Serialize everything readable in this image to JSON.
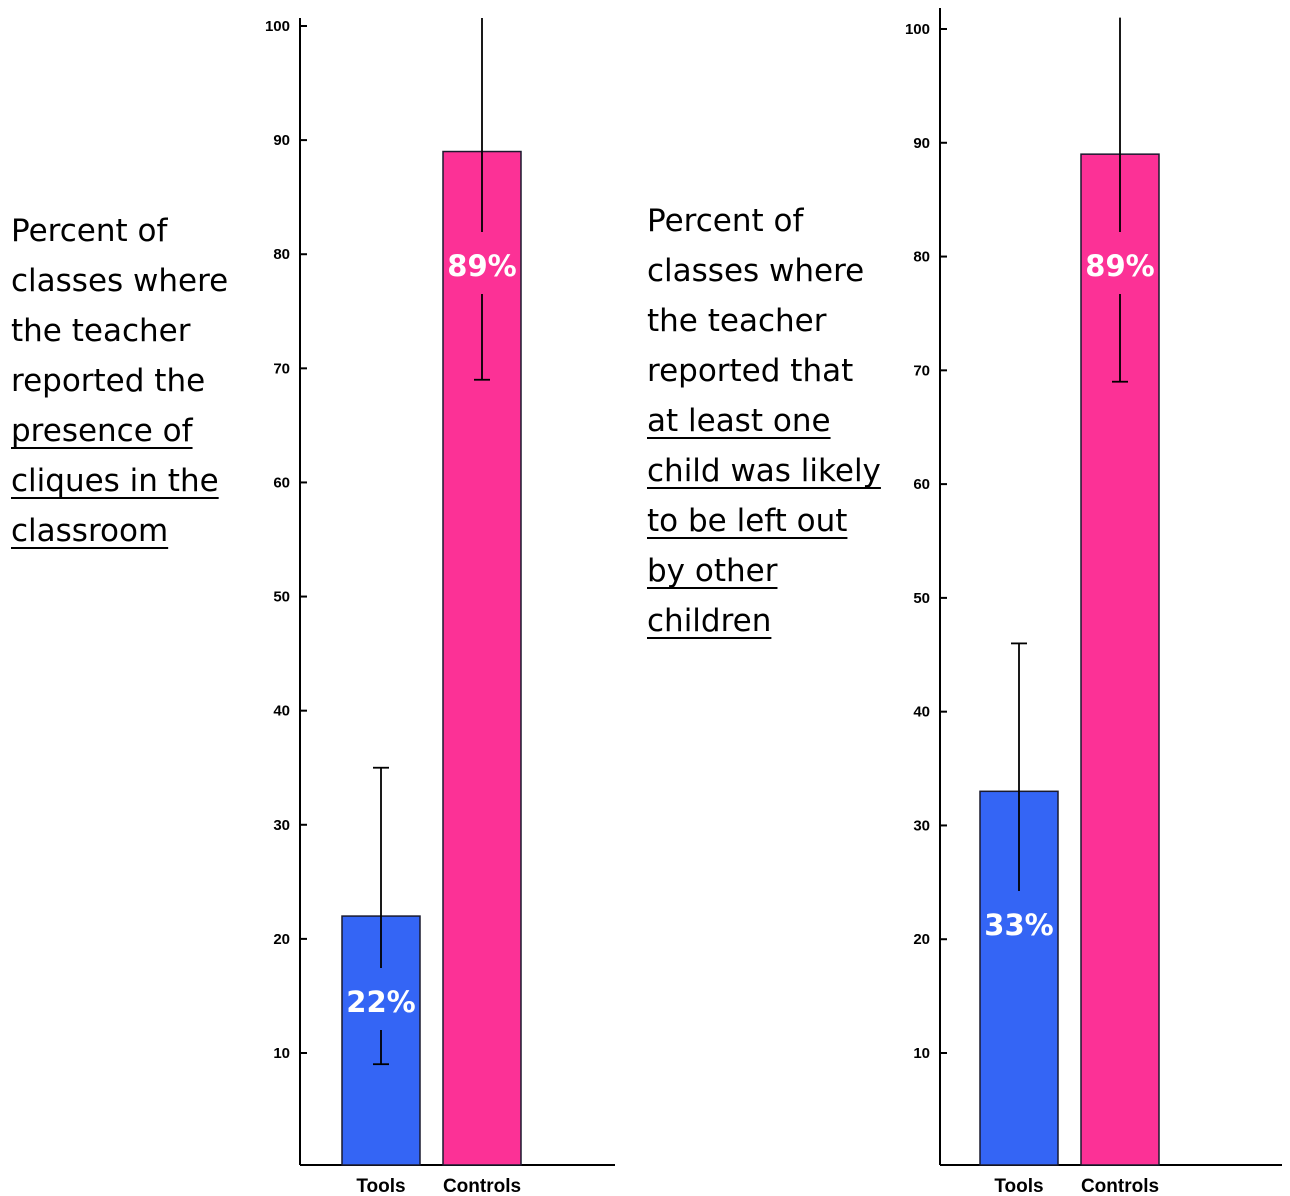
{
  "charts": [
    {
      "description_lead": "Percent of classes where the teacher reported the",
      "description_emphasis": "presence of cliques in the classroom",
      "chart_data": {
        "type": "bar",
        "categories": [
          "Tools",
          "Controls"
        ],
        "values": [
          22,
          89
        ],
        "error_bars": [
          [
            9,
            35
          ],
          [
            69,
            101
          ]
        ],
        "data_labels": [
          "22%",
          "89%"
        ],
        "yticks": [
          10,
          20,
          30,
          40,
          50,
          60,
          70,
          80,
          90,
          100
        ],
        "ylim": [
          0,
          100
        ],
        "colors": [
          "#3465f5",
          "#fc3196"
        ],
        "grid": false,
        "legend": "none"
      }
    },
    {
      "description_lead": "Percent of classes where the teacher reported that",
      "description_emphasis": "at least one child was likely to be left out by other children",
      "chart_data": {
        "type": "bar",
        "categories": [
          "Tools",
          "Controls"
        ],
        "values": [
          33,
          89
        ],
        "error_bars": [
          [
            24,
            46
          ],
          [
            69,
            101
          ]
        ],
        "data_labels": [
          "33%",
          "89%"
        ],
        "yticks": [
          10,
          20,
          30,
          40,
          50,
          60,
          70,
          80,
          90,
          100
        ],
        "ylim": [
          0,
          100
        ],
        "colors": [
          "#3465f5",
          "#fc3196"
        ],
        "grid": false,
        "legend": "none"
      }
    }
  ]
}
